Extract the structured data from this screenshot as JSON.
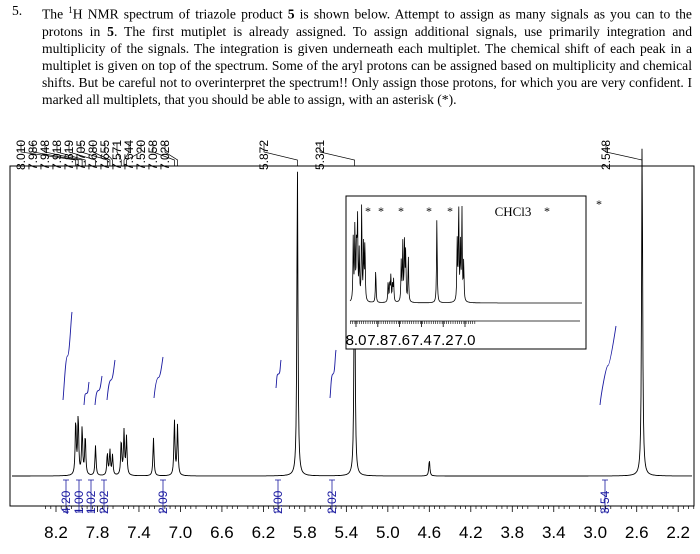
{
  "question": {
    "number": "5.",
    "before_sup": "The ",
    "sup": "1",
    "after_sup": "H NMR spectrum of triazole product ",
    "bold1": "5",
    "mid": " is shown below. Attempt to assign as many signals as you can to the protons in ",
    "bold2": "5",
    "rest": ". The first mutiplet is already assigned. To assign additional signals, use primarily integration and multiplicity of the signals. The integration is given underneath each multiplet. The chemical shift of each peak in a multiplet is given on top of the spectrum. Some of the aryl protons can be assigned based on multiplicity and chemical shifts. But be careful not to overinterpret the spectrum!! Only assign those protons, for which you are very confident. I marked all multiplets, that you should be able to assign, with an asterisk (*)."
  },
  "spectrum": {
    "peak_labels": [
      "8.010",
      "7.986",
      "7.948",
      "7.918",
      "7.819",
      "7.705",
      "7.680",
      "7.655",
      "7.571",
      "7.544",
      "7.520",
      "7.058",
      "7.028",
      "5.872",
      "5.321",
      "2.548"
    ],
    "integrals": [
      {
        "value": "4.20",
        "ppm": 8.03
      },
      {
        "value": "1.00",
        "ppm": 7.89
      },
      {
        "value": "1.02",
        "ppm": 7.66
      },
      {
        "value": "2.02",
        "ppm": 7.55
      },
      {
        "value": "2.09",
        "ppm": 7.05
      },
      {
        "value": "2.00",
        "ppm": 5.872
      },
      {
        "value": "2.02",
        "ppm": 5.321
      },
      {
        "value": "3.54",
        "ppm": 2.548
      }
    ],
    "x_ticks": [
      "8.2",
      "7.8",
      "7.4",
      "7.0",
      "6.6",
      "6.2",
      "5.8",
      "5.4",
      "5.0",
      "4.6",
      "4.2",
      "3.8",
      "3.4",
      "3.0",
      "2.6",
      "2.2"
    ],
    "inset": {
      "x_ticks": [
        "8.0",
        "7.8",
        "7.6",
        "7.4",
        "7.2",
        "7.0"
      ],
      "asterisk": "*",
      "solvent": "CHCl3"
    },
    "main_asterisk": "*"
  }
}
